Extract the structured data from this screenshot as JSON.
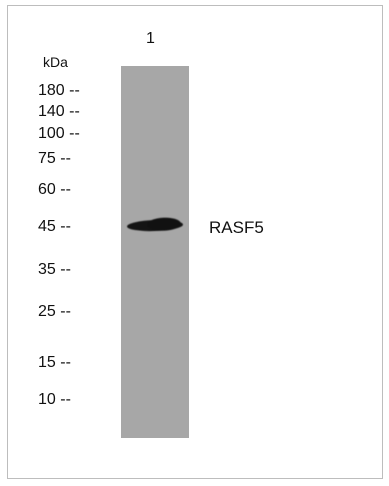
{
  "blot": {
    "lane_label": "1",
    "unit_label": "kDa",
    "markers": [
      {
        "label": "180 --"
      },
      {
        "label": "140 --"
      },
      {
        "label": "100 --"
      },
      {
        "label": "75 --"
      },
      {
        "label": "60 --"
      },
      {
        "label": "45 --"
      },
      {
        "label": "35 --"
      },
      {
        "label": "25 --"
      },
      {
        "label": "15 --"
      },
      {
        "label": "10 --"
      }
    ],
    "band_label": "RASF5"
  }
}
